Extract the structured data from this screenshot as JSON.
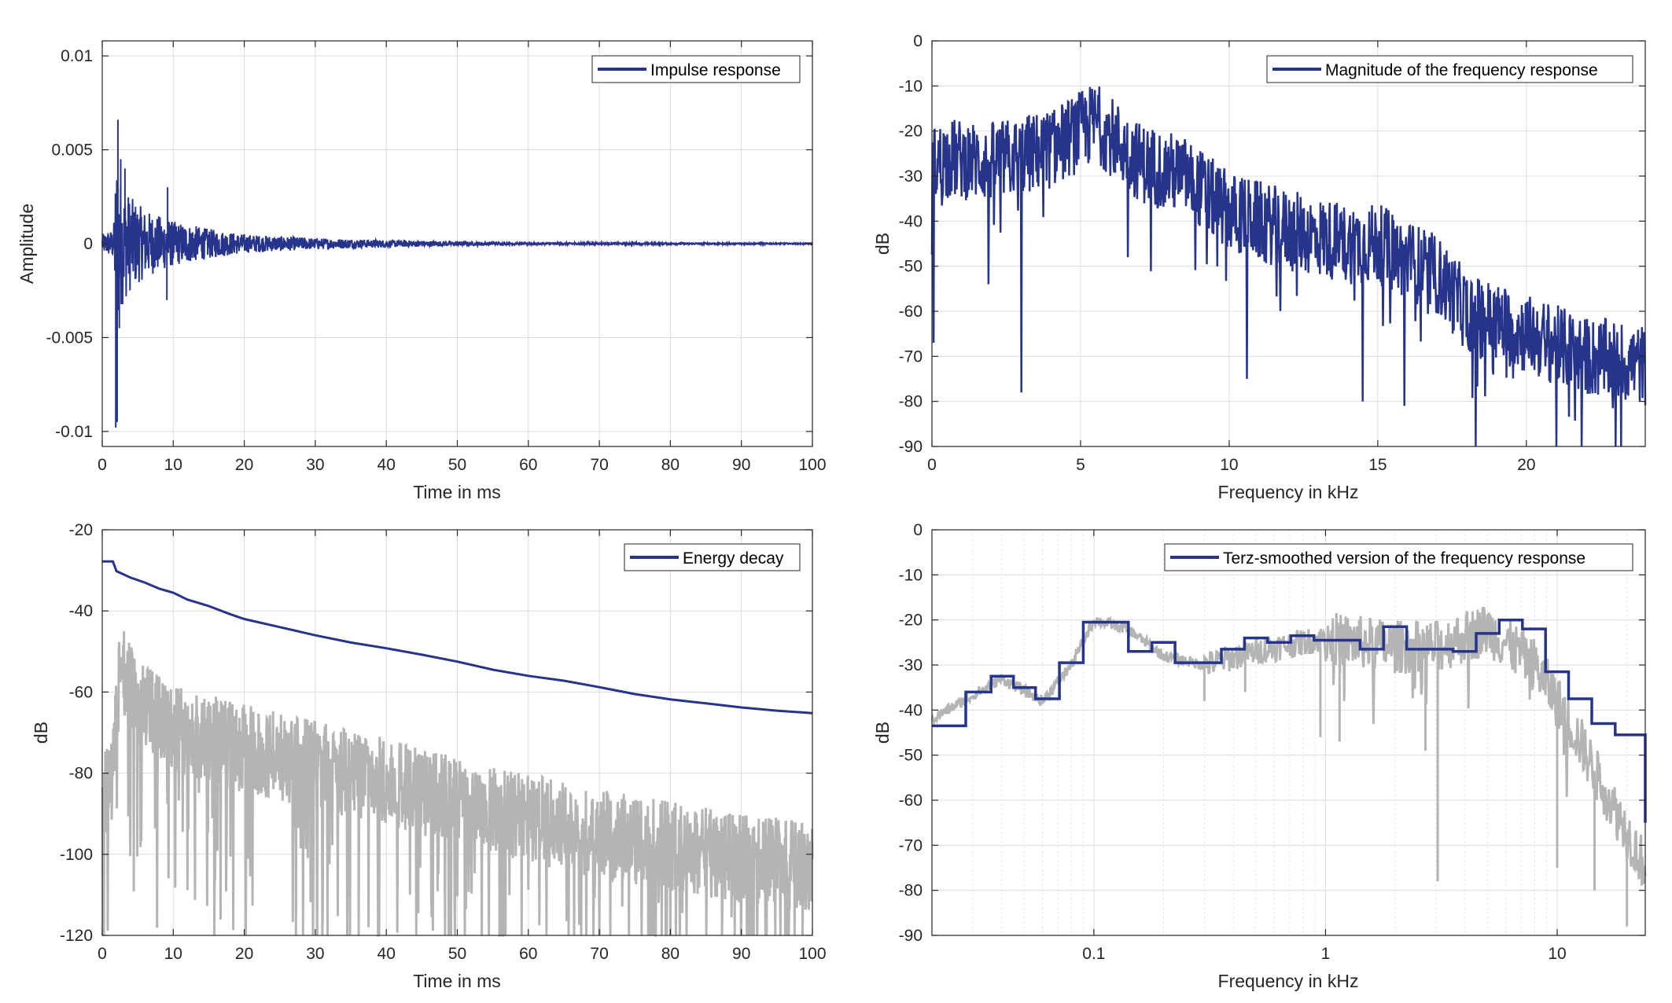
{
  "colors": {
    "primary": "#27348b",
    "secondary": "#b4b4b4",
    "grid": "#dcdcdc"
  },
  "chart_data": [
    {
      "id": "impulse",
      "type": "line",
      "xlabel": "Time in ms",
      "ylabel": "Amplitude",
      "xlim": [
        0,
        100
      ],
      "ylim": [
        -0.0108,
        0.0108
      ],
      "xticks": [
        0,
        10,
        20,
        30,
        40,
        50,
        60,
        70,
        80,
        90,
        100
      ],
      "xtick_labels": [
        "0",
        "10",
        "20",
        "30",
        "40",
        "50",
        "60",
        "70",
        "80",
        "90",
        "100"
      ],
      "yticks": [
        -0.01,
        -0.005,
        0,
        0.005,
        0.01
      ],
      "ytick_labels": [
        "-0.01",
        "-0.005",
        "0",
        "0.005",
        "0.01"
      ],
      "grid": true,
      "legend_position": "top-right",
      "series": [
        {
          "name": "Impulse response",
          "color": "#27348b",
          "description": "decaying noisy impulse, peak +0.0066 near 2.3 ms, min -0.0098 near 2.1 ms, decays to ~0 by 60 ms",
          "envelope": {
            "x": [
              0,
              1.6,
              2,
              2.5,
              4,
              6,
              10,
              15,
              20,
              30,
              40,
              50,
              60,
              100
            ],
            "y": [
              0.0005,
              0.0008,
              0.005,
              0.0035,
              0.0025,
              0.0018,
              0.0012,
              0.0008,
              0.0005,
              0.0003,
              0.0002,
              0.00012,
              6e-05,
              3e-05
            ]
          },
          "peaks": [
            [
              1.9,
              -0.0098
            ],
            [
              2.2,
              0.0066
            ],
            [
              2.6,
              0.0045
            ],
            [
              2.1,
              -0.0095
            ],
            [
              2.4,
              -0.0045
            ],
            [
              3.2,
              0.004
            ],
            [
              9.2,
              0.003
            ],
            [
              9.1,
              -0.003
            ]
          ]
        }
      ]
    },
    {
      "id": "magnitude",
      "type": "line",
      "xlabel": "Frequency in kHz",
      "ylabel": "dB",
      "xlim": [
        0,
        24
      ],
      "ylim": [
        -90,
        0
      ],
      "xticks": [
        0,
        5,
        10,
        15,
        20
      ],
      "xtick_labels": [
        "0",
        "5",
        "10",
        "15",
        "20"
      ],
      "yticks": [
        0,
        -10,
        -20,
        -30,
        -40,
        -50,
        -60,
        -70,
        -80,
        -90
      ],
      "ytick_labels": [
        "0",
        "-10",
        "-20",
        "-30",
        "-40",
        "-50",
        "-60",
        "-70",
        "-80",
        "-90"
      ],
      "grid": true,
      "legend_position": "top-right",
      "series": [
        {
          "name": "Magnitude of the frequency response",
          "color": "#27348b",
          "trend": {
            "x": [
              0,
              0.5,
              2,
              4,
              5.5,
              7,
              8.5,
              10,
              12,
              14,
              15,
              17,
              18,
              20,
              22,
              24
            ],
            "y": [
              -28,
              -26,
              -27,
              -24,
              -18,
              -27,
              -30,
              -38,
              -42,
              -45,
              -45,
              -52,
              -60,
              -65,
              -70,
              -72
            ]
          },
          "spread": 9,
          "dips": [
            [
              0.05,
              -67
            ],
            [
              1.9,
              -54
            ],
            [
              3.0,
              -78
            ],
            [
              5.6,
              -12
            ],
            [
              6.6,
              -48
            ],
            [
              10.6,
              -75
            ],
            [
              14.5,
              -80
            ],
            [
              15.9,
              -81
            ],
            [
              18.3,
              -90
            ],
            [
              21.0,
              -90
            ],
            [
              23.0,
              -90
            ]
          ]
        }
      ]
    },
    {
      "id": "energy",
      "type": "line",
      "xlabel": "Time in ms",
      "ylabel": "dB",
      "xlim": [
        0,
        100
      ],
      "ylim": [
        -120,
        -20
      ],
      "xticks": [
        0,
        10,
        20,
        30,
        40,
        50,
        60,
        70,
        80,
        90,
        100
      ],
      "xtick_labels": [
        "0",
        "10",
        "20",
        "30",
        "40",
        "50",
        "60",
        "70",
        "80",
        "90",
        "100"
      ],
      "yticks": [
        -20,
        -40,
        -60,
        -80,
        -100,
        -120
      ],
      "ytick_labels": [
        "-20",
        "-40",
        "-60",
        "-80",
        "-100",
        "-120"
      ],
      "grid": true,
      "legend_position": "top-right",
      "series": [
        {
          "name": "Energy decay",
          "color": "#27348b",
          "x": [
            0,
            1.5,
            2,
            4,
            6,
            8,
            10,
            12,
            15,
            18,
            20,
            25,
            30,
            35,
            40,
            45,
            50,
            55,
            60,
            65,
            70,
            75,
            80,
            85,
            90,
            95,
            100
          ],
          "y": [
            -27.8,
            -27.8,
            -30.2,
            -31.8,
            -33,
            -34.5,
            -35.5,
            -37.2,
            -38.8,
            -40.8,
            -42,
            -44,
            -46,
            -47.8,
            -49.2,
            -50.8,
            -52.5,
            -54.5,
            -56,
            -57.2,
            -58.8,
            -60.5,
            -61.8,
            -62.8,
            -63.8,
            -64.6,
            -65.2
          ]
        },
        {
          "name": "",
          "color": "#b4b4b4",
          "description": "squared impulse response in dB, noisy, upper band ~-55 at 5 ms down to ~-92 at 100 ms",
          "upper": {
            "x": [
              0,
              1.5,
              2.5,
              5,
              10,
              20,
              30,
              40,
              50,
              60,
              70,
              80,
              90,
              100
            ],
            "y": [
              -75,
              -70,
              -42,
              -52,
              -58,
              -63,
              -67,
              -71,
              -76,
              -80,
              -84,
              -87,
              -90,
              -92
            ]
          },
          "lower_floor": -120
        }
      ]
    },
    {
      "id": "terz",
      "type": "line",
      "xlabel": "Frequency in kHz",
      "ylabel": "dB",
      "xscale": "log",
      "xlim": [
        0.02,
        24
      ],
      "ylim": [
        -90,
        0
      ],
      "xticks": [
        0.1,
        1,
        10
      ],
      "xtick_labels": [
        "0.1",
        "1",
        "10"
      ],
      "yticks": [
        0,
        -10,
        -20,
        -30,
        -40,
        -50,
        -60,
        -70,
        -80,
        -90
      ],
      "ytick_labels": [
        "0",
        "-10",
        "-20",
        "-30",
        "-40",
        "-50",
        "-60",
        "-70",
        "-80",
        "-90"
      ],
      "grid": true,
      "minor_grid": true,
      "legend_position": "top-right",
      "series": [
        {
          "name": "Terz-smoothed version of the frequency response",
          "color": "#27348b",
          "step_edges": [
            0.02,
            0.028,
            0.036,
            0.045,
            0.056,
            0.071,
            0.09,
            0.112,
            0.141,
            0.178,
            0.224,
            0.282,
            0.355,
            0.447,
            0.562,
            0.708,
            0.891,
            1.12,
            1.41,
            1.78,
            2.24,
            2.82,
            3.55,
            4.47,
            5.62,
            7.08,
            8.91,
            11.2,
            14.1,
            17.8,
            24
          ],
          "values": [
            -43.5,
            -36,
            -32.5,
            -35,
            -37.5,
            -29.5,
            -20.5,
            -20.5,
            -27,
            -25,
            -29.5,
            -29.5,
            -26.5,
            -24,
            -25,
            -23.5,
            -24.5,
            -24.5,
            -26.5,
            -21.5,
            -26.5,
            -26.5,
            -27,
            -23,
            -20,
            -22,
            -31.5,
            -37.5,
            -43,
            -45.5,
            -65
          ]
        },
        {
          "name": "",
          "color": "#b4b4b4",
          "trend": {
            "x": [
              0.02,
              0.04,
              0.06,
              0.08,
              0.1,
              0.14,
              0.2,
              0.3,
              0.5,
              1,
              2,
              3,
              5,
              8,
              10,
              12,
              15,
              20,
              24
            ],
            "y": [
              -42,
              -33,
              -38,
              -30,
              -20,
              -22,
              -28,
              -30,
              -27,
              -24,
              -26,
              -26,
              -22,
              -30,
              -38,
              -45,
              -55,
              -67,
              -75
            ]
          },
          "spread": 5,
          "dips": [
            [
              0.3,
              -38
            ],
            [
              0.45,
              -36
            ],
            [
              0.95,
              -46
            ],
            [
              1.15,
              -47
            ],
            [
              2.7,
              -49
            ],
            [
              3.05,
              -78
            ],
            [
              10,
              -75
            ],
            [
              14.5,
              -80
            ],
            [
              20,
              -88
            ]
          ]
        }
      ]
    }
  ]
}
